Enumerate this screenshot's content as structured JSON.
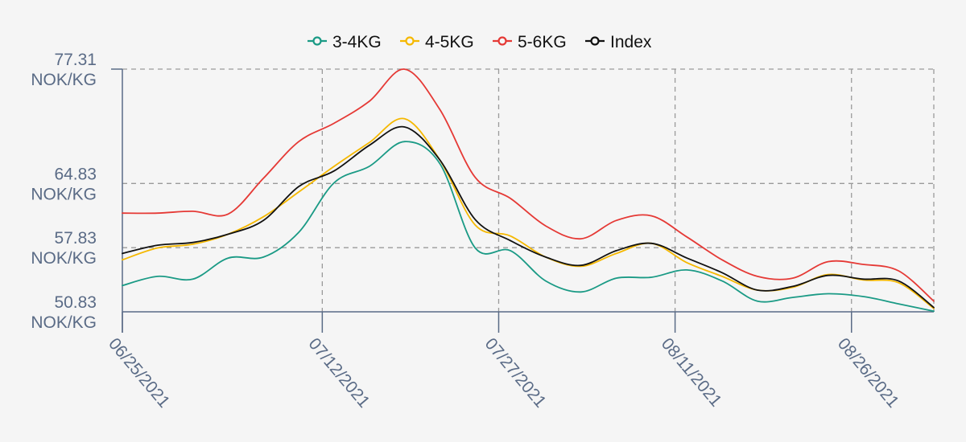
{
  "chart_data": {
    "type": "line",
    "title": "",
    "xlabel": "",
    "ylabel": "",
    "unit": "NOK/KG",
    "xlim": [
      "2021-06-25",
      "2021-09-02"
    ],
    "ylim": [
      50.83,
      77.31
    ],
    "y_ticks": [
      {
        "value": 77.31,
        "label": "77.31",
        "unit": "NOK/KG"
      },
      {
        "value": 64.83,
        "label": "64.83",
        "unit": "NOK/KG"
      },
      {
        "value": 57.83,
        "label": "57.83",
        "unit": "NOK/KG"
      },
      {
        "value": 50.83,
        "label": "50.83",
        "unit": "NOK/KG"
      }
    ],
    "x_ticks": [
      {
        "value": "2021-06-25",
        "label": "06/25/2021"
      },
      {
        "value": "2021-07-12",
        "label": "07/12/2021"
      },
      {
        "value": "2021-07-27",
        "label": "07/27/2021"
      },
      {
        "value": "2021-08-11",
        "label": "08/11/2021"
      },
      {
        "value": "2021-08-26",
        "label": "08/26/2021"
      }
    ],
    "grid": true,
    "legend_position": "top-center",
    "x": [
      "2021-06-25",
      "2021-06-28",
      "2021-07-01",
      "2021-07-04",
      "2021-07-07",
      "2021-07-10",
      "2021-07-13",
      "2021-07-16",
      "2021-07-19",
      "2021-07-22",
      "2021-07-25",
      "2021-07-28",
      "2021-07-31",
      "2021-08-03",
      "2021-08-06",
      "2021-08-09",
      "2021-08-12",
      "2021-08-15",
      "2021-08-18",
      "2021-08-21",
      "2021-08-24",
      "2021-08-27",
      "2021-08-30",
      "2021-09-02"
    ],
    "series": [
      {
        "name": "3-4KG",
        "color": "#1a9a85",
        "values": [
          53.7,
          54.7,
          54.4,
          56.7,
          56.8,
          59.5,
          64.9,
          66.7,
          69.4,
          67.0,
          57.8,
          57.5,
          54.2,
          53.0,
          54.5,
          54.6,
          55.4,
          54.2,
          52.0,
          52.4,
          52.8,
          52.5,
          51.7,
          50.9
        ]
      },
      {
        "name": "4-5KG",
        "color": "#f5b800",
        "values": [
          56.5,
          57.8,
          58.2,
          59.3,
          61.2,
          63.9,
          66.7,
          69.3,
          71.9,
          67.4,
          60.3,
          59.1,
          56.8,
          55.8,
          57.2,
          58.3,
          56.2,
          54.7,
          53.2,
          53.5,
          54.9,
          54.3,
          54.0,
          51.2
        ]
      },
      {
        "name": "5-6KG",
        "color": "#e53935",
        "values": [
          61.6,
          61.6,
          61.8,
          61.5,
          65.4,
          69.4,
          71.4,
          73.8,
          77.3,
          72.9,
          65.5,
          63.2,
          60.2,
          58.8,
          60.8,
          61.3,
          59.0,
          56.5,
          54.7,
          54.5,
          56.3,
          56.0,
          55.3,
          52.0
        ]
      },
      {
        "name": "Index",
        "color": "#111111",
        "values": [
          57.2,
          58.1,
          58.4,
          59.3,
          60.8,
          64.5,
          66.2,
          69.0,
          71.0,
          67.4,
          60.9,
          58.6,
          56.8,
          55.9,
          57.5,
          58.3,
          56.7,
          55.1,
          53.2,
          53.6,
          54.8,
          54.4,
          54.2,
          51.3
        ]
      }
    ]
  }
}
